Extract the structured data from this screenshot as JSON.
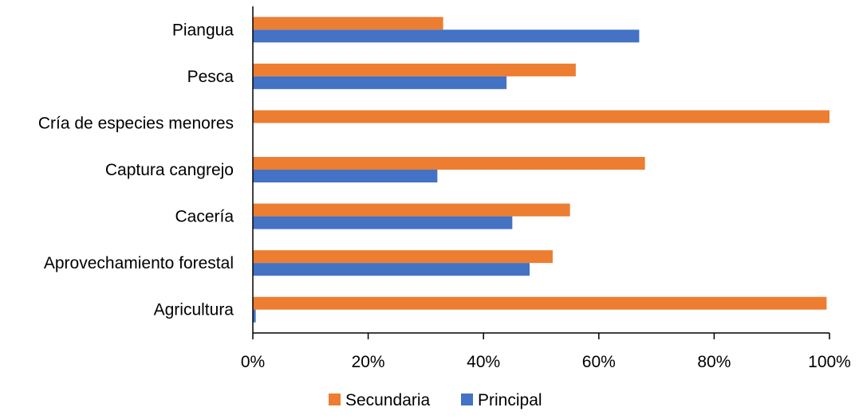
{
  "chart_data": {
    "type": "bar",
    "orientation": "horizontal",
    "stacked": false,
    "categories": [
      "Piangua",
      "Pesca",
      "Cría de especies menores",
      "Captura cangrejo",
      "Cacería",
      "Aprovechamiento forestal",
      "Agricultura"
    ],
    "series": [
      {
        "name": "Secundaria",
        "color": "#ED7D31",
        "values": [
          33,
          56,
          100,
          68,
          55,
          52,
          99.5
        ]
      },
      {
        "name": "Principal",
        "color": "#4472C4",
        "values": [
          67,
          44,
          0,
          32,
          45,
          48,
          0.5
        ]
      }
    ],
    "xlim": [
      0,
      100
    ],
    "x_ticks": [
      "0%",
      "20%",
      "40%",
      "60%",
      "80%",
      "100%"
    ],
    "x_tick_values": [
      0,
      20,
      40,
      60,
      80,
      100
    ],
    "grid": false,
    "legend_position": "bottom"
  }
}
